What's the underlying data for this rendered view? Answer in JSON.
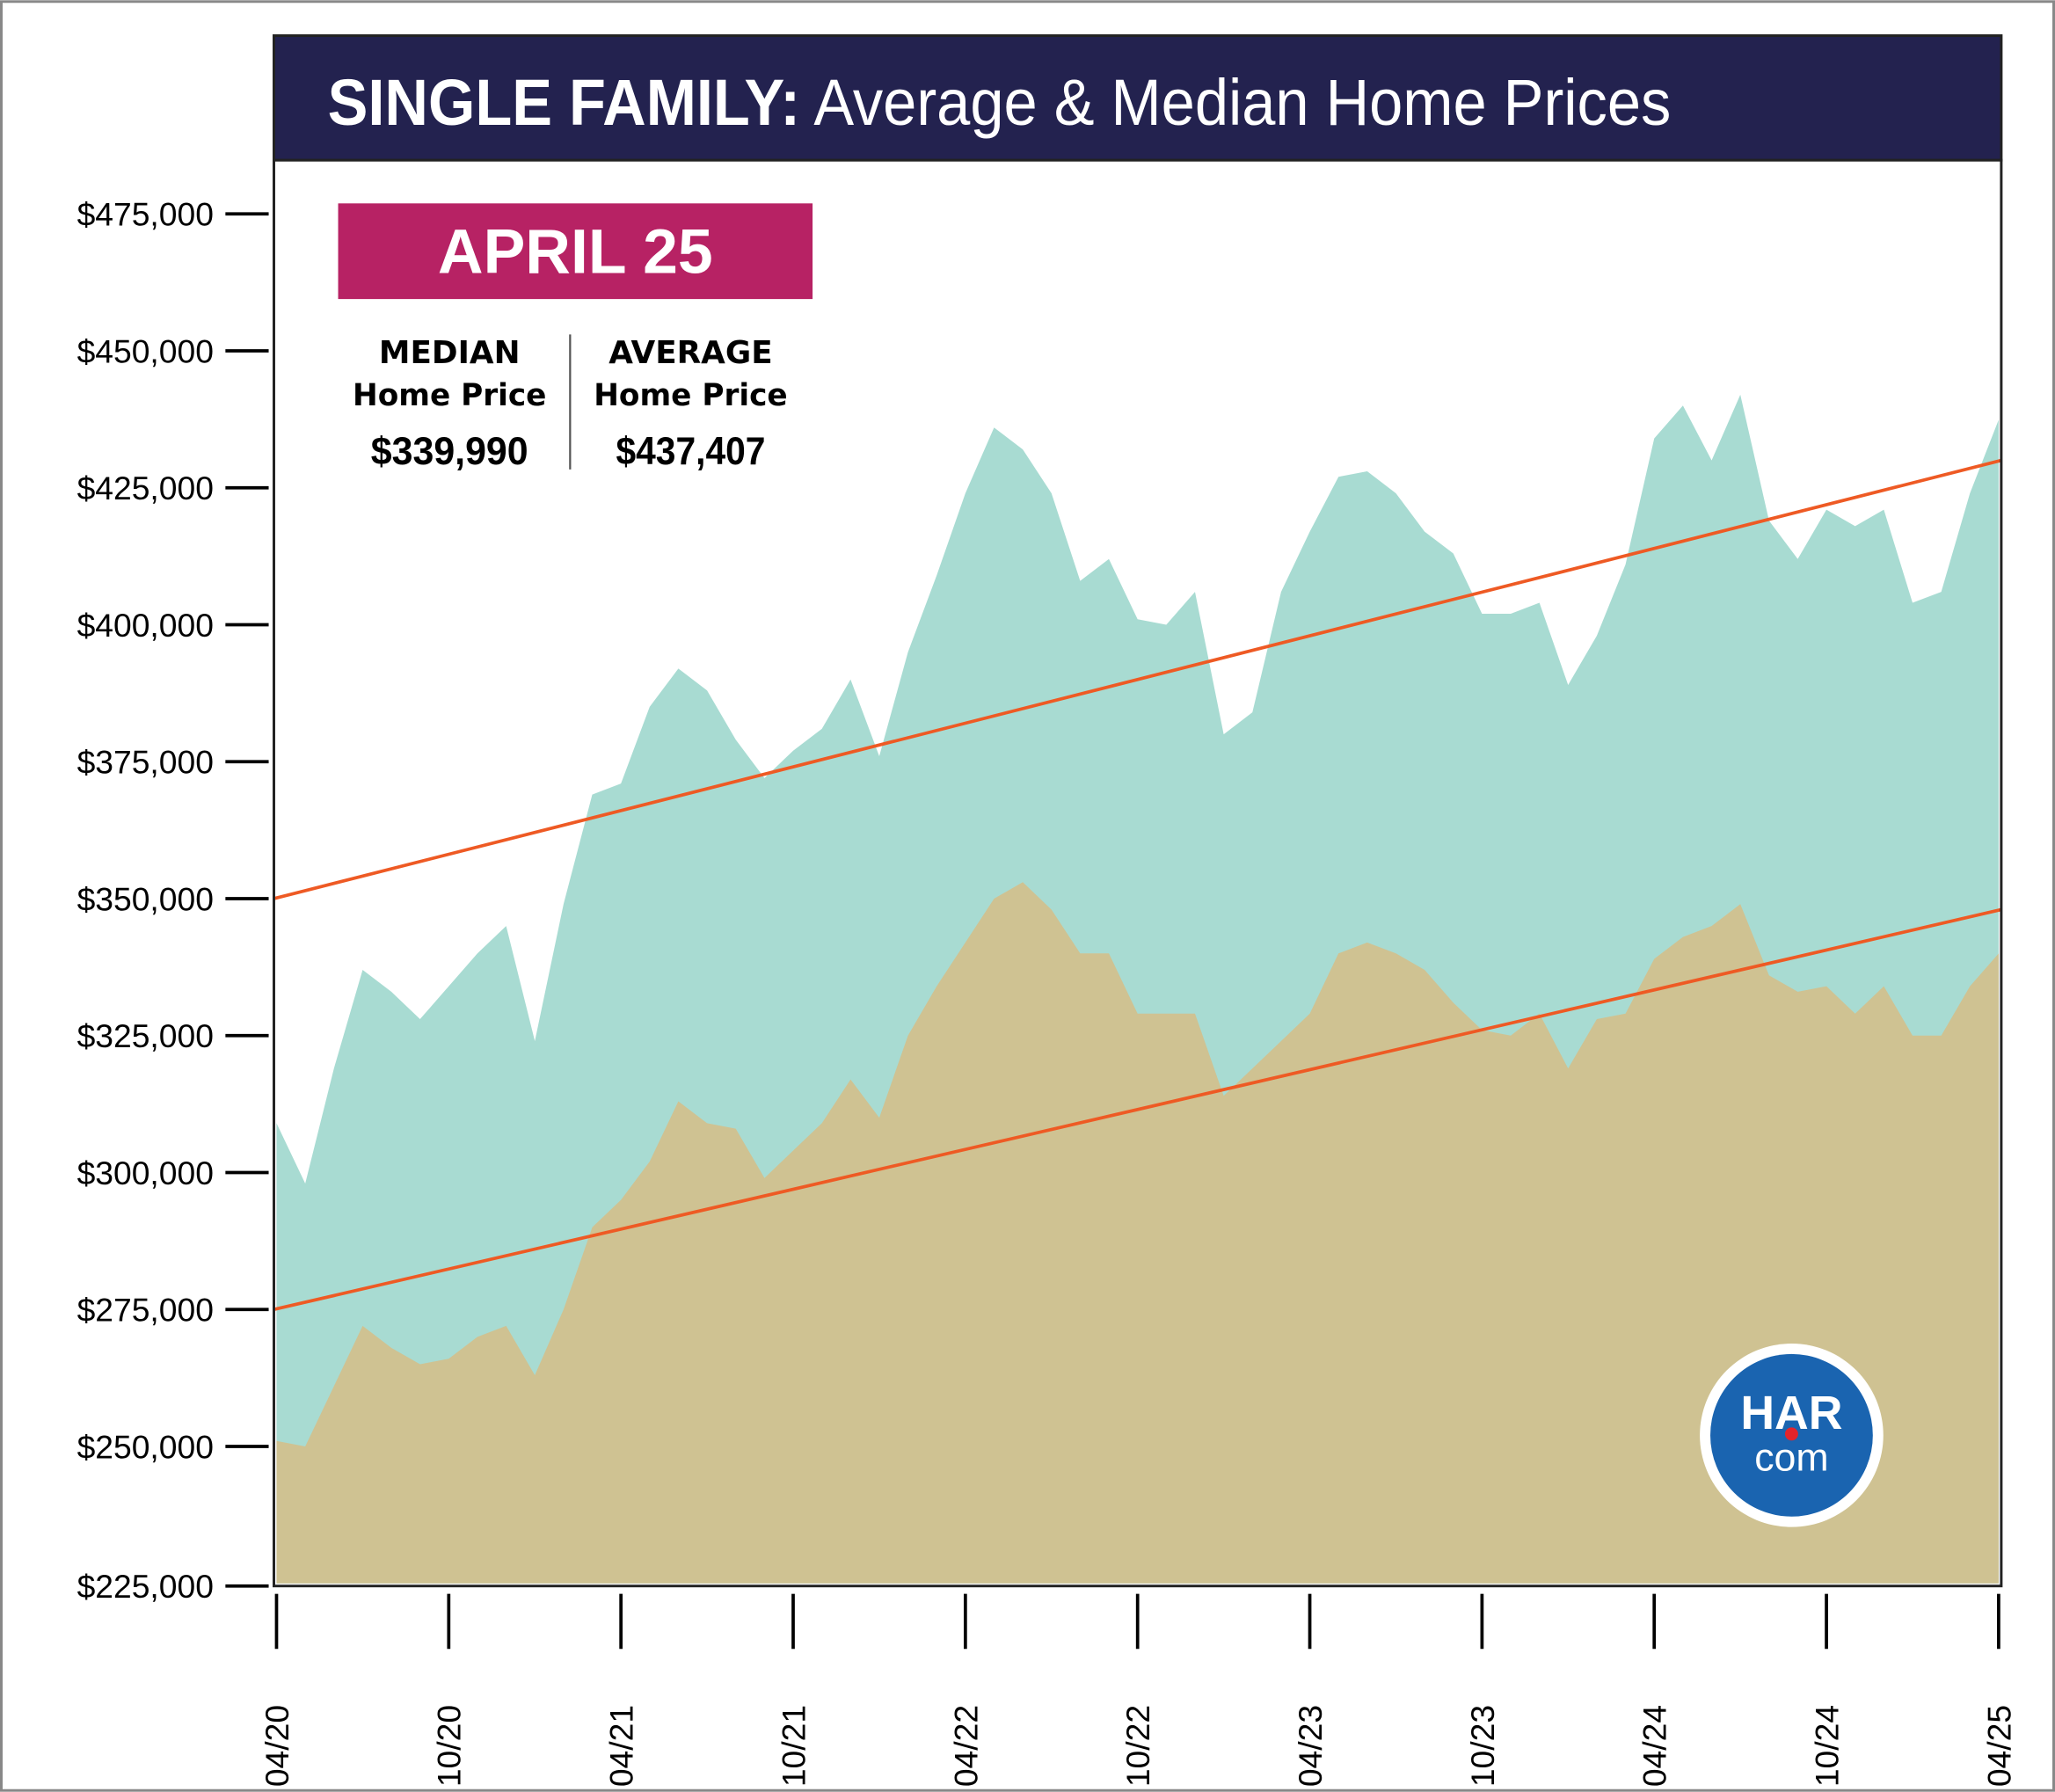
{
  "chart_data": {
    "type": "area",
    "title_bold": "SINGLE FAMILY:",
    "title_rest": " Average & Median Home Prices",
    "xlabel": "",
    "ylabel": "",
    "ylim": [
      225000,
      475000
    ],
    "y_ticks": [
      225000,
      250000,
      275000,
      300000,
      325000,
      350000,
      375000,
      400000,
      425000,
      450000,
      475000
    ],
    "y_tick_labels": [
      "$225,000",
      "$250,000",
      "$275,000",
      "$300,000",
      "$325,000",
      "$350,000",
      "$375,000",
      "$400,000",
      "$425,000",
      "$450,000",
      "$475,000"
    ],
    "x_tick_labels": [
      "04/20",
      "10/20",
      "04/21",
      "10/21",
      "04/22",
      "10/22",
      "04/23",
      "10/23",
      "04/24",
      "10/24",
      "04/25"
    ],
    "x_tick_month_index": [
      0,
      6,
      12,
      18,
      24,
      30,
      36,
      42,
      48,
      54,
      60
    ],
    "series": [
      {
        "name": "Average Home Price",
        "color": "#a8dbd2",
        "values": [
          309000,
          298000,
          319000,
          337000,
          333000,
          328000,
          334000,
          340000,
          345000,
          324000,
          349000,
          369000,
          371000,
          385000,
          392000,
          388000,
          379000,
          372000,
          377000,
          381000,
          390000,
          376000,
          395000,
          409000,
          424000,
          436000,
          432000,
          424000,
          408000,
          412000,
          401000,
          400000,
          406000,
          380000,
          384000,
          406000,
          417000,
          427000,
          428000,
          424000,
          417000,
          413000,
          402000,
          402000,
          404000,
          389000,
          398000,
          411000,
          434000,
          440000,
          430000,
          442000,
          419000,
          412000,
          421000,
          418000,
          421000,
          404000,
          406000,
          424000,
          437407
        ]
      },
      {
        "name": "Median Home Price",
        "color": "#cfc292",
        "values": [
          251000,
          250000,
          261000,
          272000,
          268000,
          265000,
          266000,
          270000,
          272000,
          263000,
          275000,
          290000,
          295000,
          302000,
          313000,
          309000,
          308000,
          299000,
          304000,
          309000,
          317000,
          310000,
          325000,
          334000,
          342000,
          350000,
          353000,
          348000,
          340000,
          340000,
          329000,
          329000,
          329000,
          314000,
          319000,
          324000,
          329000,
          340000,
          342000,
          340000,
          337000,
          331000,
          326000,
          325000,
          329000,
          319000,
          328000,
          329000,
          339000,
          343000,
          345000,
          349000,
          336000,
          333000,
          334000,
          329000,
          334000,
          325000,
          325000,
          334000,
          339990
        ]
      }
    ],
    "trendlines": [
      {
        "name": "Average trend",
        "color": "#ee5a24",
        "start": 350000,
        "end": 430000
      },
      {
        "name": "Median trend",
        "color": "#ee5a24",
        "start": 275000,
        "end": 348000
      }
    ]
  },
  "badge": {
    "label": "APRIL 25",
    "color": "#b72264"
  },
  "stats": {
    "median_head": "MEDIAN",
    "median_sub": "Home Price",
    "median_value": "$339,990",
    "average_head": "AVERAGE",
    "average_sub": "Home Price",
    "average_value": "$437,407"
  },
  "logo": {
    "line1": "HAR",
    "line2": "com",
    "color": "#1a64b0"
  },
  "colors": {
    "header": "#23224f",
    "frame": "#222"
  }
}
